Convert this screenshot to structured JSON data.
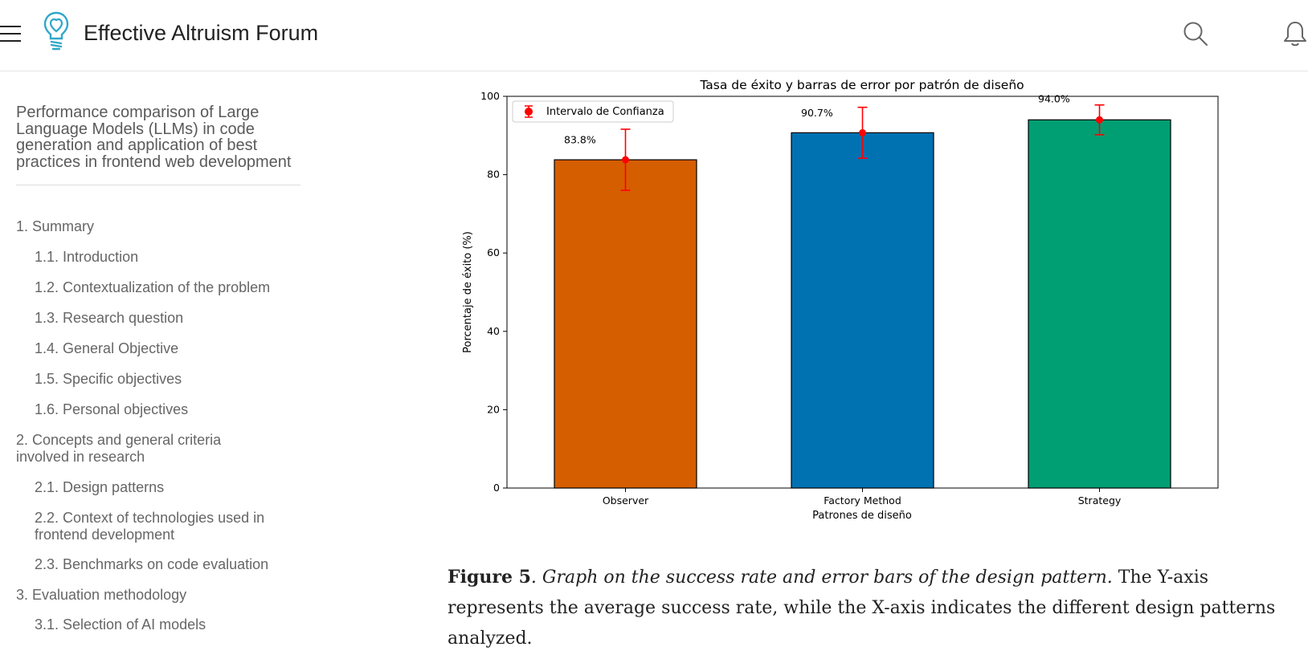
{
  "header": {
    "site_title": "Effective Altruism Forum",
    "icons": [
      "menu-icon",
      "lightbulb-logo-icon",
      "search-icon",
      "bell-icon"
    ]
  },
  "sidebar": {
    "title": "Performance comparison of Large Language Models (LLMs) in code generation and application of best practices in frontend web development",
    "items": [
      {
        "label": "1. Summary",
        "level": 1
      },
      {
        "label": "1.1. Introduction",
        "level": 2
      },
      {
        "label": "1.2. Contextualization of the problem",
        "level": 2
      },
      {
        "label": "1.3. Research question",
        "level": 2
      },
      {
        "label": "1.4. General Objective",
        "level": 2
      },
      {
        "label": "1.5. Specific objectives",
        "level": 2
      },
      {
        "label": "1.6. Personal objectives",
        "level": 2
      },
      {
        "label": "2. Concepts and general criteria involved in research",
        "level": 1
      },
      {
        "label": "2.1. Design patterns",
        "level": 2
      },
      {
        "label": "2.2. Context of technologies used in frontend development",
        "level": 2
      },
      {
        "label": "2.3. Benchmarks on code evaluation",
        "level": 2
      },
      {
        "label": "3. Evaluation methodology",
        "level": 1
      },
      {
        "label": "3.1. Selection of AI models",
        "level": 2
      }
    ]
  },
  "chart_data": {
    "type": "bar",
    "title": "Tasa de éxito y barras de error por patrón de diseño",
    "xlabel": "Patrones de diseño",
    "ylabel": "Porcentaje de éxito (%)",
    "categories": [
      "Observer",
      "Factory Method",
      "Strategy"
    ],
    "values": [
      83.8,
      90.7,
      94.0
    ],
    "value_labels": [
      "83.8%",
      "90.7%",
      "94.0%"
    ],
    "error_low": [
      76.0,
      84.2,
      90.2
    ],
    "error_high": [
      91.6,
      97.2,
      97.8
    ],
    "colors": [
      "#d55e00",
      "#0072b2",
      "#009e73"
    ],
    "error_color": "#ff0000",
    "ylim": [
      0,
      100
    ],
    "yticks": [
      "0",
      "20",
      "40",
      "60",
      "80",
      "100"
    ],
    "legend": {
      "label": "Intervalo de Confianza",
      "placement": "top-left"
    },
    "grid": false
  },
  "caption": {
    "label": "Figure 5",
    "italic_text": ". Graph on the success rate and error bars of the design pattern.",
    "text": " The Y-axis represents the average success rate, while the X-axis indicates the different design patterns analyzed."
  }
}
